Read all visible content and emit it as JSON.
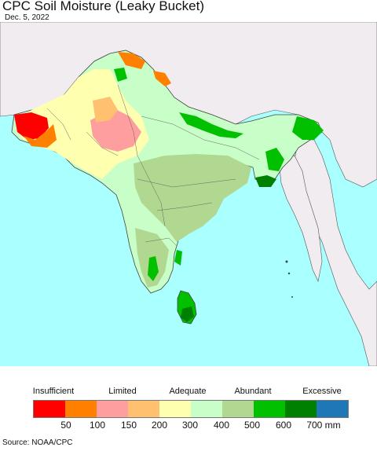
{
  "title": "CPC Soil Moisture (Leaky Bucket)",
  "date": "Dec. 5, 2022",
  "source": "Source: NOAA/CPC",
  "colors": {
    "ocean": "#aaffff",
    "outside_land": "#f0ecf0",
    "border": "#444444"
  },
  "legend": {
    "categories": [
      "Insufficient",
      "Limited",
      "Adequate",
      "Abundant",
      "Excessive"
    ],
    "swatch_colors": [
      "#ff0000",
      "#ff8000",
      "#ff9e9e",
      "#ffc070",
      "#ffffb0",
      "#c8ffc8",
      "#b0d890",
      "#00c000",
      "#008000",
      "#1e78b8"
    ],
    "ticks": [
      "50",
      "100",
      "150",
      "200",
      "300",
      "400",
      "500",
      "600",
      "700 mm"
    ]
  }
}
